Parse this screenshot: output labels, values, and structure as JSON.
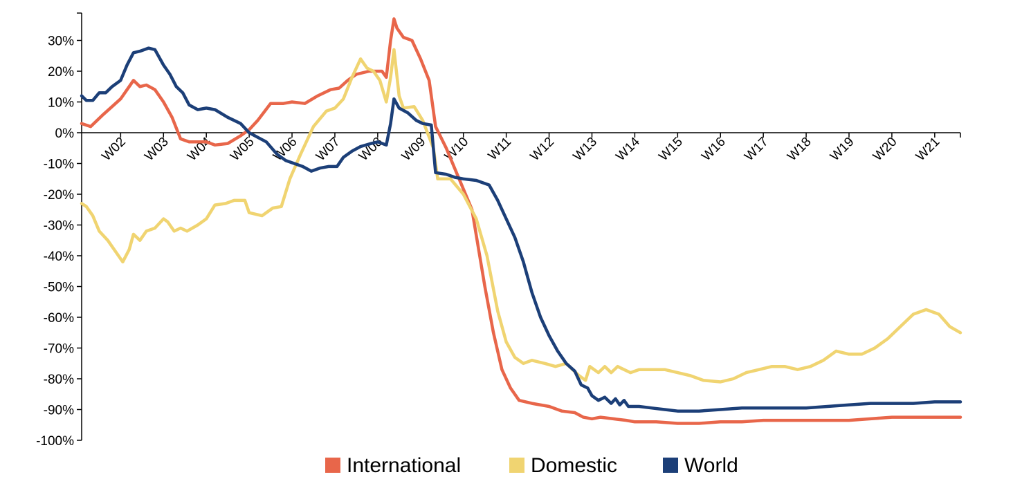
{
  "chart_data": {
    "type": "line",
    "title": "",
    "xlabel": "",
    "ylabel": "",
    "x_ticks": [
      "W02",
      "W03",
      "W04",
      "W05",
      "W06",
      "W07",
      "W08",
      "W09",
      "W10",
      "W11",
      "W12",
      "W13",
      "W14",
      "W15",
      "W16",
      "W17",
      "W18",
      "W19",
      "W20",
      "W21"
    ],
    "x_range": [
      1.09,
      21.6
    ],
    "y_ticks": [
      30,
      20,
      10,
      0,
      -10,
      -20,
      -30,
      -40,
      -50,
      -60,
      -70,
      -80,
      -90,
      -100
    ],
    "y_tick_labels": [
      "30%",
      "20%",
      "10%",
      "0%",
      "-10%",
      "-20%",
      "-30%",
      "-40%",
      "-50%",
      "-60%",
      "-70%",
      "-80%",
      "-90%",
      "-100%"
    ],
    "ylim": [
      -100,
      38
    ],
    "grid": false,
    "legend_position": "bottom-center",
    "series": [
      {
        "name": "International",
        "color": "#e8664a",
        "points": [
          [
            1.09,
            3
          ],
          [
            1.3,
            2
          ],
          [
            1.6,
            6
          ],
          [
            1.8,
            8.5
          ],
          [
            2.0,
            11
          ],
          [
            2.2,
            15
          ],
          [
            2.3,
            17
          ],
          [
            2.45,
            15
          ],
          [
            2.6,
            15.5
          ],
          [
            2.8,
            14
          ],
          [
            3.0,
            10
          ],
          [
            3.2,
            5
          ],
          [
            3.4,
            -2
          ],
          [
            3.6,
            -3
          ],
          [
            3.8,
            -3
          ],
          [
            4.0,
            -3
          ],
          [
            4.2,
            -4
          ],
          [
            4.5,
            -3.5
          ],
          [
            4.8,
            -1
          ],
          [
            5.0,
            1
          ],
          [
            5.2,
            4
          ],
          [
            5.5,
            9.5
          ],
          [
            5.8,
            9.5
          ],
          [
            6.0,
            10
          ],
          [
            6.3,
            9.5
          ],
          [
            6.6,
            12
          ],
          [
            6.9,
            14
          ],
          [
            7.1,
            14.5
          ],
          [
            7.3,
            17
          ],
          [
            7.5,
            19
          ],
          [
            7.8,
            20
          ],
          [
            8.1,
            20
          ],
          [
            8.2,
            18
          ],
          [
            8.3,
            30
          ],
          [
            8.38,
            37
          ],
          [
            8.45,
            34
          ],
          [
            8.6,
            31
          ],
          [
            8.8,
            30
          ],
          [
            9.0,
            24
          ],
          [
            9.2,
            17
          ],
          [
            9.35,
            2
          ],
          [
            9.6,
            -5
          ],
          [
            9.9,
            -15
          ],
          [
            10.2,
            -25
          ],
          [
            10.5,
            -50
          ],
          [
            10.7,
            -65
          ],
          [
            10.9,
            -77
          ],
          [
            11.1,
            -83
          ],
          [
            11.3,
            -87
          ],
          [
            11.6,
            -88
          ],
          [
            12.0,
            -89
          ],
          [
            12.3,
            -90.5
          ],
          [
            12.6,
            -91
          ],
          [
            12.8,
            -92.5
          ],
          [
            13.0,
            -93
          ],
          [
            13.2,
            -92.5
          ],
          [
            13.5,
            -93
          ],
          [
            13.8,
            -93.5
          ],
          [
            14.0,
            -94
          ],
          [
            14.5,
            -94
          ],
          [
            15.0,
            -94.5
          ],
          [
            15.5,
            -94.5
          ],
          [
            16.0,
            -94
          ],
          [
            16.5,
            -94
          ],
          [
            17.0,
            -93.5
          ],
          [
            17.5,
            -93.5
          ],
          [
            18.0,
            -93.5
          ],
          [
            18.5,
            -93.5
          ],
          [
            19.0,
            -93.5
          ],
          [
            19.5,
            -93
          ],
          [
            20.0,
            -92.5
          ],
          [
            20.5,
            -92.5
          ],
          [
            21.0,
            -92.5
          ],
          [
            21.6,
            -92.5
          ]
        ]
      },
      {
        "name": "Domestic",
        "color": "#f0d471",
        "points": [
          [
            1.09,
            -23
          ],
          [
            1.2,
            -24
          ],
          [
            1.35,
            -27
          ],
          [
            1.5,
            -32
          ],
          [
            1.7,
            -35
          ],
          [
            1.9,
            -39
          ],
          [
            2.05,
            -42
          ],
          [
            2.2,
            -38
          ],
          [
            2.3,
            -33
          ],
          [
            2.45,
            -35
          ],
          [
            2.6,
            -32
          ],
          [
            2.8,
            -31
          ],
          [
            3.0,
            -28
          ],
          [
            3.1,
            -29
          ],
          [
            3.25,
            -32
          ],
          [
            3.4,
            -31
          ],
          [
            3.55,
            -32
          ],
          [
            3.8,
            -30
          ],
          [
            4.0,
            -28
          ],
          [
            4.2,
            -23.5
          ],
          [
            4.45,
            -23
          ],
          [
            4.65,
            -22
          ],
          [
            4.9,
            -22
          ],
          [
            5.0,
            -26
          ],
          [
            5.3,
            -27
          ],
          [
            5.55,
            -24.5
          ],
          [
            5.75,
            -24
          ],
          [
            5.95,
            -15
          ],
          [
            6.2,
            -7
          ],
          [
            6.5,
            2
          ],
          [
            6.8,
            7
          ],
          [
            7.0,
            8
          ],
          [
            7.2,
            11
          ],
          [
            7.4,
            18
          ],
          [
            7.6,
            24
          ],
          [
            7.75,
            21
          ],
          [
            7.9,
            20
          ],
          [
            8.05,
            17
          ],
          [
            8.2,
            10
          ],
          [
            8.3,
            18
          ],
          [
            8.38,
            27
          ],
          [
            8.5,
            12
          ],
          [
            8.6,
            8
          ],
          [
            8.85,
            8.5
          ],
          [
            9.05,
            4
          ],
          [
            9.3,
            -5
          ],
          [
            9.4,
            -15
          ],
          [
            9.7,
            -15
          ],
          [
            10.0,
            -20
          ],
          [
            10.3,
            -28
          ],
          [
            10.55,
            -40
          ],
          [
            10.8,
            -58
          ],
          [
            11.0,
            -68
          ],
          [
            11.2,
            -73
          ],
          [
            11.4,
            -75
          ],
          [
            11.6,
            -74
          ],
          [
            11.9,
            -75
          ],
          [
            12.15,
            -76
          ],
          [
            12.4,
            -75
          ],
          [
            12.55,
            -77
          ],
          [
            12.7,
            -79
          ],
          [
            12.85,
            -80.5
          ],
          [
            12.95,
            -76
          ],
          [
            13.05,
            -77
          ],
          [
            13.15,
            -78
          ],
          [
            13.3,
            -76
          ],
          [
            13.45,
            -78
          ],
          [
            13.6,
            -76
          ],
          [
            13.75,
            -77
          ],
          [
            13.9,
            -78
          ],
          [
            14.1,
            -77
          ],
          [
            14.4,
            -77
          ],
          [
            14.7,
            -77
          ],
          [
            15.0,
            -78
          ],
          [
            15.3,
            -79
          ],
          [
            15.6,
            -80.5
          ],
          [
            16.0,
            -81
          ],
          [
            16.3,
            -80
          ],
          [
            16.6,
            -78
          ],
          [
            16.9,
            -77
          ],
          [
            17.2,
            -76
          ],
          [
            17.5,
            -76
          ],
          [
            17.8,
            -77
          ],
          [
            18.1,
            -76
          ],
          [
            18.4,
            -74
          ],
          [
            18.7,
            -71
          ],
          [
            19.0,
            -72
          ],
          [
            19.3,
            -72
          ],
          [
            19.6,
            -70
          ],
          [
            19.9,
            -67
          ],
          [
            20.2,
            -63
          ],
          [
            20.5,
            -59
          ],
          [
            20.8,
            -57.5
          ],
          [
            21.1,
            -59
          ],
          [
            21.35,
            -63
          ],
          [
            21.6,
            -65
          ]
        ]
      },
      {
        "name": "World",
        "color": "#1c3f78",
        "points": [
          [
            1.09,
            12
          ],
          [
            1.2,
            10.5
          ],
          [
            1.35,
            10.5
          ],
          [
            1.5,
            13
          ],
          [
            1.65,
            13
          ],
          [
            1.8,
            15
          ],
          [
            2.0,
            17
          ],
          [
            2.15,
            22
          ],
          [
            2.3,
            26
          ],
          [
            2.45,
            26.5
          ],
          [
            2.65,
            27.5
          ],
          [
            2.8,
            27
          ],
          [
            3.0,
            22
          ],
          [
            3.15,
            19
          ],
          [
            3.3,
            15
          ],
          [
            3.45,
            13
          ],
          [
            3.6,
            9
          ],
          [
            3.8,
            7.5
          ],
          [
            4.0,
            8
          ],
          [
            4.2,
            7.5
          ],
          [
            4.5,
            5
          ],
          [
            4.8,
            3
          ],
          [
            5.0,
            0
          ],
          [
            5.2,
            -1.5
          ],
          [
            5.4,
            -3
          ],
          [
            5.65,
            -7
          ],
          [
            5.85,
            -9
          ],
          [
            6.05,
            -10
          ],
          [
            6.25,
            -11
          ],
          [
            6.45,
            -12.5
          ],
          [
            6.65,
            -11.5
          ],
          [
            6.85,
            -11
          ],
          [
            7.05,
            -11
          ],
          [
            7.2,
            -8
          ],
          [
            7.4,
            -6
          ],
          [
            7.6,
            -4.5
          ],
          [
            7.85,
            -3.5
          ],
          [
            8.0,
            -3
          ],
          [
            8.2,
            -4
          ],
          [
            8.3,
            3
          ],
          [
            8.38,
            11
          ],
          [
            8.5,
            8
          ],
          [
            8.7,
            6.5
          ],
          [
            8.9,
            4
          ],
          [
            9.05,
            3
          ],
          [
            9.25,
            2.5
          ],
          [
            9.35,
            -13
          ],
          [
            9.6,
            -13.5
          ],
          [
            9.8,
            -14.5
          ],
          [
            10.0,
            -15
          ],
          [
            10.3,
            -15.5
          ],
          [
            10.6,
            -17
          ],
          [
            10.8,
            -22
          ],
          [
            11.0,
            -28
          ],
          [
            11.2,
            -34
          ],
          [
            11.4,
            -42
          ],
          [
            11.6,
            -52
          ],
          [
            11.8,
            -60
          ],
          [
            12.0,
            -66
          ],
          [
            12.2,
            -71
          ],
          [
            12.4,
            -75
          ],
          [
            12.6,
            -77.5
          ],
          [
            12.75,
            -82
          ],
          [
            12.9,
            -83
          ],
          [
            13.0,
            -85.5
          ],
          [
            13.15,
            -87
          ],
          [
            13.3,
            -86
          ],
          [
            13.45,
            -88
          ],
          [
            13.55,
            -86.5
          ],
          [
            13.65,
            -88.5
          ],
          [
            13.75,
            -87
          ],
          [
            13.85,
            -89
          ],
          [
            14.1,
            -89
          ],
          [
            14.4,
            -89.5
          ],
          [
            14.7,
            -90
          ],
          [
            15.0,
            -90.5
          ],
          [
            15.5,
            -90.5
          ],
          [
            16.0,
            -90
          ],
          [
            16.5,
            -89.5
          ],
          [
            17.0,
            -89.5
          ],
          [
            17.5,
            -89.5
          ],
          [
            18.0,
            -89.5
          ],
          [
            18.5,
            -89
          ],
          [
            19.0,
            -88.5
          ],
          [
            19.5,
            -88
          ],
          [
            20.0,
            -88
          ],
          [
            20.5,
            -88
          ],
          [
            21.0,
            -87.5
          ],
          [
            21.6,
            -87.5
          ]
        ]
      }
    ]
  }
}
